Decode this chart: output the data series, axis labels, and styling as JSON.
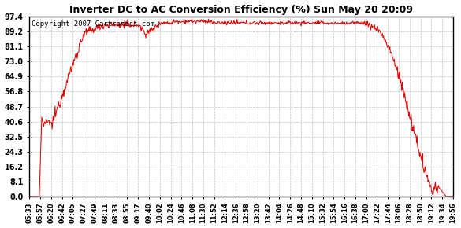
{
  "title": "Inverter DC to AC Conversion Efficiency (%) Sun May 20 20:09",
  "copyright": "Copyright 2007 Cartronics.com",
  "line_color": "#dd0000",
  "bg_color": "#ffffff",
  "plot_bg_color": "#ffffff",
  "grid_color": "#bbbbbb",
  "yticks": [
    0.0,
    8.1,
    16.2,
    24.3,
    32.5,
    40.6,
    48.7,
    56.8,
    64.9,
    73.0,
    81.1,
    89.2,
    97.4
  ],
  "ymin": 0.0,
  "ymax": 97.4,
  "xtick_labels": [
    "05:33",
    "05:57",
    "06:20",
    "06:42",
    "07:05",
    "07:27",
    "07:49",
    "08:11",
    "08:33",
    "08:55",
    "09:17",
    "09:40",
    "10:02",
    "10:24",
    "10:46",
    "11:08",
    "11:30",
    "11:52",
    "12:14",
    "12:36",
    "12:58",
    "13:20",
    "13:42",
    "14:04",
    "14:26",
    "14:48",
    "15:10",
    "15:32",
    "15:54",
    "16:16",
    "16:38",
    "17:00",
    "17:22",
    "17:44",
    "18:06",
    "18:28",
    "18:50",
    "19:12",
    "19:34",
    "19:56"
  ],
  "n_points": 860
}
